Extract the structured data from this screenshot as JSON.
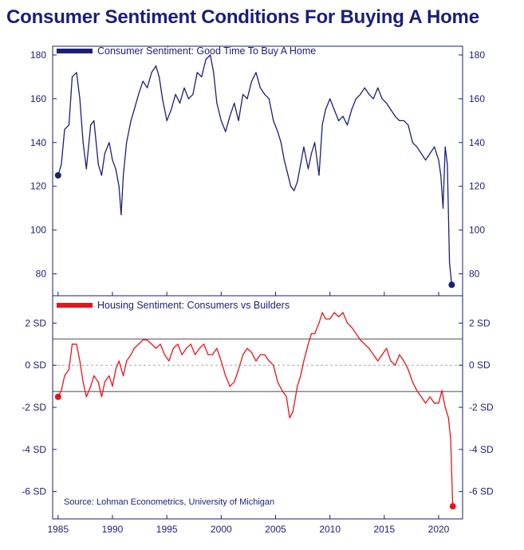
{
  "title": "Consumer Sentiment Conditions For Buying A Home",
  "colors": {
    "navy": "#1a1f7a",
    "red": "#e8141c",
    "axis": "#1a1f7a"
  },
  "source": "Source: Lohman Econometrics, University of Michigan",
  "chart_data": [
    {
      "type": "line",
      "series": [
        {
          "name": "Consumer Sentiment: Good Time To Buy A Home",
          "color": "#1a1f7a",
          "x": [
            1985.0,
            1985.3,
            1985.6,
            1986.0,
            1986.3,
            1986.7,
            1987.0,
            1987.3,
            1987.6,
            1988.0,
            1988.3,
            1988.7,
            1989.0,
            1989.3,
            1989.7,
            1990.0,
            1990.3,
            1990.6,
            1990.8,
            1991.0,
            1991.3,
            1991.7,
            1992.0,
            1992.4,
            1992.8,
            1993.2,
            1993.6,
            1994.0,
            1994.3,
            1994.6,
            1995.0,
            1995.4,
            1995.8,
            1996.2,
            1996.6,
            1997.0,
            1997.4,
            1997.8,
            1998.2,
            1998.6,
            1999.0,
            1999.3,
            1999.6,
            2000.0,
            2000.4,
            2000.8,
            2001.2,
            2001.6,
            2002.0,
            2002.4,
            2002.8,
            2003.2,
            2003.6,
            2004.0,
            2004.4,
            2004.8,
            2005.2,
            2005.5,
            2005.8,
            2006.1,
            2006.4,
            2006.7,
            2007.0,
            2007.3,
            2007.6,
            2008.0,
            2008.3,
            2008.6,
            2009.0,
            2009.3,
            2009.6,
            2010.0,
            2010.4,
            2010.8,
            2011.2,
            2011.6,
            2012.0,
            2012.4,
            2012.8,
            2013.2,
            2013.6,
            2014.0,
            2014.4,
            2014.8,
            2015.2,
            2015.6,
            2016.0,
            2016.4,
            2016.8,
            2017.2,
            2017.6,
            2018.0,
            2018.4,
            2018.8,
            2019.2,
            2019.6,
            2020.0,
            2020.2,
            2020.4,
            2020.6,
            2020.8,
            2021.0,
            2021.2
          ],
          "values": [
            125,
            130,
            146,
            148,
            170,
            172,
            160,
            140,
            128,
            148,
            150,
            130,
            125,
            135,
            140,
            132,
            128,
            120,
            107,
            125,
            140,
            150,
            155,
            162,
            168,
            165,
            172,
            175,
            170,
            160,
            150,
            155,
            162,
            158,
            165,
            160,
            162,
            172,
            170,
            178,
            180,
            172,
            158,
            150,
            145,
            152,
            158,
            150,
            162,
            160,
            168,
            172,
            165,
            162,
            160,
            150,
            145,
            140,
            132,
            126,
            120,
            118,
            122,
            130,
            138,
            128,
            135,
            140,
            125,
            148,
            155,
            160,
            155,
            150,
            152,
            148,
            155,
            160,
            162,
            165,
            162,
            160,
            165,
            160,
            158,
            155,
            152,
            150,
            150,
            148,
            140,
            138,
            135,
            132,
            135,
            138,
            132,
            125,
            110,
            138,
            130,
            85,
            75
          ]
        }
      ],
      "x_ticks": [
        1985,
        1990,
        1995,
        2000,
        2005,
        2010,
        2015,
        2020
      ],
      "y_ticks": [
        "80",
        "100",
        "120",
        "140",
        "160",
        "180"
      ],
      "ylim": [
        70,
        184
      ],
      "xlim": [
        1984.5,
        2022.2
      ],
      "legend": "top-left",
      "grid": false
    },
    {
      "type": "line",
      "series": [
        {
          "name": "Housing Sentiment: Consumers vs Builders",
          "color": "#e8141c",
          "x": [
            1985.0,
            1985.3,
            1985.6,
            1986.0,
            1986.3,
            1986.7,
            1987.0,
            1987.3,
            1987.6,
            1988.0,
            1988.3,
            1988.7,
            1989.0,
            1989.3,
            1989.7,
            1990.0,
            1990.3,
            1990.6,
            1991.0,
            1991.3,
            1991.7,
            1992.0,
            1992.4,
            1992.8,
            1993.2,
            1993.6,
            1994.0,
            1994.4,
            1994.8,
            1995.2,
            1995.6,
            1996.0,
            1996.4,
            1996.8,
            1997.2,
            1997.6,
            1998.0,
            1998.4,
            1998.8,
            1999.2,
            1999.6,
            2000.0,
            2000.4,
            2000.8,
            2001.2,
            2001.6,
            2002.0,
            2002.4,
            2002.8,
            2003.2,
            2003.6,
            2004.0,
            2004.4,
            2004.8,
            2005.2,
            2005.6,
            2006.0,
            2006.3,
            2006.6,
            2007.0,
            2007.3,
            2007.6,
            2008.0,
            2008.3,
            2008.6,
            2009.0,
            2009.3,
            2009.6,
            2010.0,
            2010.4,
            2010.8,
            2011.2,
            2011.6,
            2012.0,
            2012.4,
            2012.8,
            2013.2,
            2013.6,
            2014.0,
            2014.4,
            2014.8,
            2015.2,
            2015.6,
            2016.0,
            2016.4,
            2016.8,
            2017.2,
            2017.6,
            2018.0,
            2018.4,
            2018.8,
            2019.2,
            2019.6,
            2020.0,
            2020.3,
            2020.6,
            2020.9,
            2021.1,
            2021.3
          ],
          "values": [
            -1.5,
            -1.2,
            -0.5,
            -0.2,
            1.0,
            1.0,
            0.2,
            -0.8,
            -1.5,
            -1.0,
            -0.5,
            -0.8,
            -1.5,
            -0.8,
            -0.5,
            -1.0,
            -0.2,
            0.2,
            -0.5,
            0.2,
            0.5,
            0.8,
            1.0,
            1.2,
            1.2,
            1.0,
            0.8,
            1.0,
            0.5,
            0.2,
            0.8,
            1.0,
            0.5,
            0.8,
            1.0,
            0.5,
            0.8,
            1.0,
            0.5,
            0.5,
            0.8,
            0.2,
            -0.5,
            -1.0,
            -0.8,
            -0.2,
            0.5,
            0.8,
            0.6,
            0.2,
            0.5,
            0.5,
            0.2,
            0.0,
            -0.8,
            -1.2,
            -1.5,
            -2.5,
            -2.2,
            -1.0,
            -0.5,
            0.2,
            1.0,
            1.5,
            1.5,
            2.0,
            2.5,
            2.2,
            2.2,
            2.5,
            2.3,
            2.5,
            2.0,
            1.8,
            1.5,
            1.2,
            1.0,
            0.8,
            0.5,
            0.2,
            0.5,
            0.8,
            0.2,
            0.0,
            0.5,
            0.2,
            -0.2,
            -0.8,
            -1.2,
            -1.5,
            -1.8,
            -1.5,
            -1.8,
            -1.8,
            -1.2,
            -2.0,
            -2.5,
            -3.5,
            -6.7
          ]
        }
      ],
      "x_ticks": [
        1985,
        1990,
        1995,
        2000,
        2005,
        2010,
        2015,
        2020
      ],
      "y_ticks": [
        "2 SD",
        "0 SD",
        "-2 SD",
        "-4 SD",
        "-6 SD"
      ],
      "y_tick_values": [
        2,
        0,
        -2,
        -4,
        -6
      ],
      "ylim": [
        -7.3,
        3.3
      ],
      "xlim": [
        1984.5,
        2022.2
      ],
      "reference_lines": [
        1.25,
        0,
        -1.25
      ],
      "legend": "top-left",
      "grid": false
    }
  ]
}
